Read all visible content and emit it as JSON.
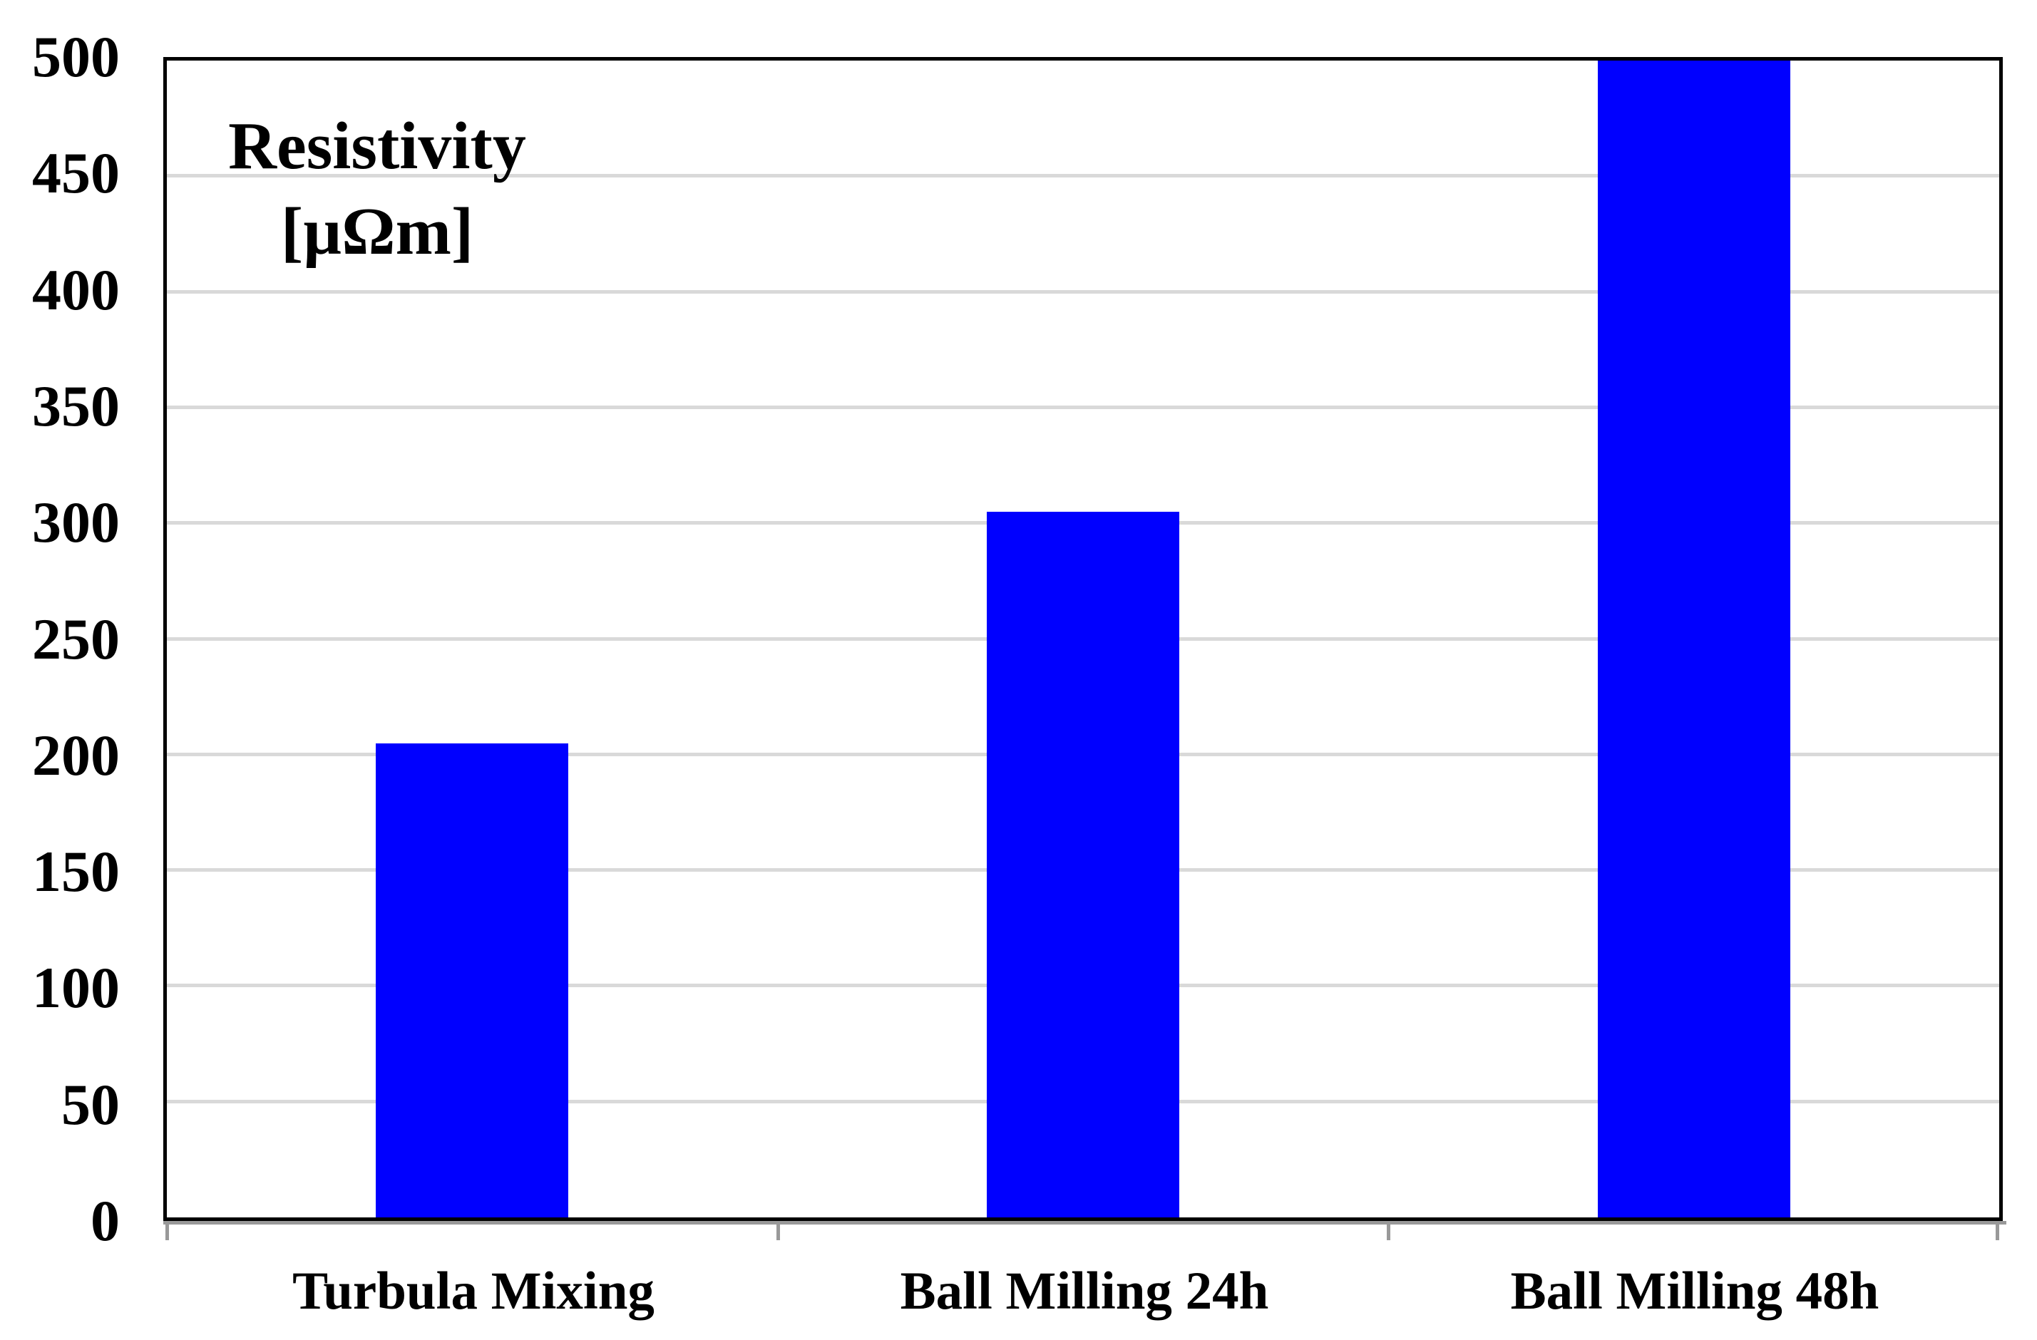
{
  "chart_data": {
    "type": "bar",
    "title_lines": [
      "Resistivity",
      "[µΩm]"
    ],
    "categories": [
      "Turbula Mixing",
      "Ball Milling 24h",
      "Ball Milling 48h"
    ],
    "values": [
      205,
      305,
      500
    ],
    "series": [
      {
        "name": "Resistivity [µΩm]",
        "values": [
          205,
          305,
          500
        ]
      }
    ],
    "xlabel": "",
    "ylabel": "Resistivity [µΩm]",
    "ylim": [
      0,
      500
    ],
    "ytick_step": 50,
    "yticks": [
      0,
      50,
      100,
      150,
      200,
      250,
      300,
      350,
      400,
      450,
      500
    ],
    "grid": "horizontal gridlines at each 50, plot framed with solid border",
    "legend_position": "none",
    "colors": {
      "bar": "#0000FF",
      "gridline": "#D9D9D9",
      "axis_frame": "#000000",
      "axis_shadow": "#999999",
      "background": "#FFFFFF",
      "text": "#000000"
    }
  }
}
